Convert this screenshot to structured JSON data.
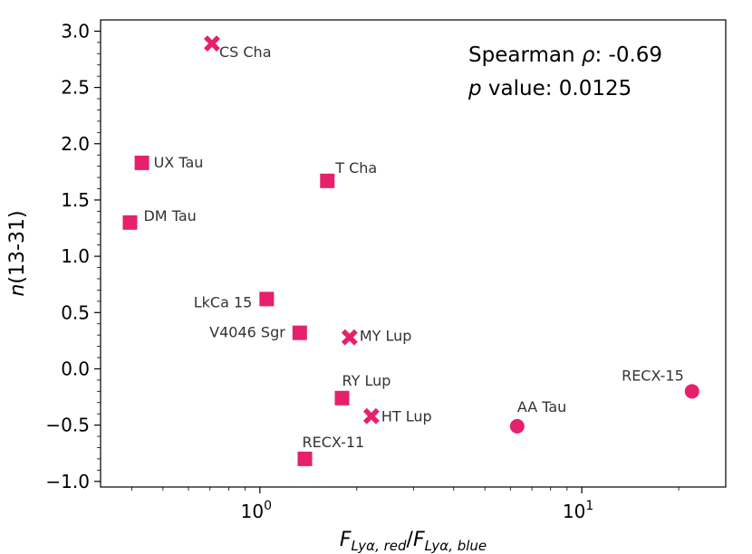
{
  "chart_data": {
    "type": "scatter",
    "title": "",
    "xlabel": "F_{Lyα,red}/F_{Lyα,blue}",
    "xlabel_main_left": "F",
    "xlabel_sub_left": "Lyα, red",
    "xlabel_slash": "/",
    "xlabel_main_right": "F",
    "xlabel_sub_right": "Lyα, blue",
    "ylabel": "n(13-31)",
    "ylabel_italic": "n",
    "ylabel_rest": "(13-31)",
    "xscale": "log",
    "xlim": [
      0.32,
      28.0
    ],
    "ylim": [
      -1.05,
      3.1
    ],
    "xticks": [
      {
        "value": 1,
        "base": "10",
        "exp": "0"
      },
      {
        "value": 10,
        "base": "10",
        "exp": "1"
      }
    ],
    "yticks": [
      {
        "value": -1.0,
        "label": "−1.0"
      },
      {
        "value": -0.5,
        "label": "−0.5"
      },
      {
        "value": 0.0,
        "label": "0.0"
      },
      {
        "value": 0.5,
        "label": "0.5"
      },
      {
        "value": 1.0,
        "label": "1.0"
      },
      {
        "value": 1.5,
        "label": "1.5"
      },
      {
        "value": 2.0,
        "label": "2.0"
      },
      {
        "value": 2.5,
        "label": "2.5"
      },
      {
        "value": 3.0,
        "label": "3.0"
      }
    ],
    "annotation": {
      "line1_prefix": "Spearman ",
      "line1_symbol": "ρ",
      "line1_value": ": -0.69",
      "line2_symbol": "p",
      "line2_value": " value: 0.0125"
    },
    "marker_color": "#e6206c",
    "points": [
      {
        "name": "CS Cha",
        "x": 0.71,
        "y": 2.89,
        "marker": "x",
        "label_anchor": "start",
        "label_dx": 8,
        "label_dy": 15
      },
      {
        "name": "UX Tau",
        "x": 0.43,
        "y": 1.83,
        "marker": "square",
        "label_anchor": "start",
        "label_dx": 13,
        "label_dy": 5
      },
      {
        "name": "T Cha",
        "x": 1.62,
        "y": 1.67,
        "marker": "square",
        "label_anchor": "start",
        "label_dx": 9,
        "label_dy": -9
      },
      {
        "name": "DM Tau",
        "x": 0.395,
        "y": 1.3,
        "marker": "square",
        "label_anchor": "start",
        "label_dx": 15,
        "label_dy": -2
      },
      {
        "name": "LkCa 15",
        "x": 1.05,
        "y": 0.62,
        "marker": "square",
        "label_anchor": "end",
        "label_dx": -16,
        "label_dy": 9
      },
      {
        "name": "V4046 Sgr",
        "x": 1.33,
        "y": 0.32,
        "marker": "square",
        "label_anchor": "end",
        "label_dx": -16,
        "label_dy": 5
      },
      {
        "name": "MY Lup",
        "x": 1.9,
        "y": 0.28,
        "marker": "x",
        "label_anchor": "start",
        "label_dx": 11,
        "label_dy": 4
      },
      {
        "name": "RY Lup",
        "x": 1.8,
        "y": -0.26,
        "marker": "square",
        "label_anchor": "start",
        "label_dx": 0,
        "label_dy": -14
      },
      {
        "name": "HT Lup",
        "x": 2.22,
        "y": -0.42,
        "marker": "x",
        "label_anchor": "start",
        "label_dx": 11,
        "label_dy": 6
      },
      {
        "name": "AA Tau",
        "x": 6.3,
        "y": -0.51,
        "marker": "circle",
        "label_anchor": "start",
        "label_dx": 0,
        "label_dy": -16
      },
      {
        "name": "RECX-15",
        "x": 22.0,
        "y": -0.2,
        "marker": "circle",
        "label_anchor": "end",
        "label_dx": -9,
        "label_dy": -12
      },
      {
        "name": "RECX-11",
        "x": 1.38,
        "y": -0.8,
        "marker": "square",
        "label_anchor": "start",
        "label_dx": -3,
        "label_dy": -13
      }
    ]
  }
}
